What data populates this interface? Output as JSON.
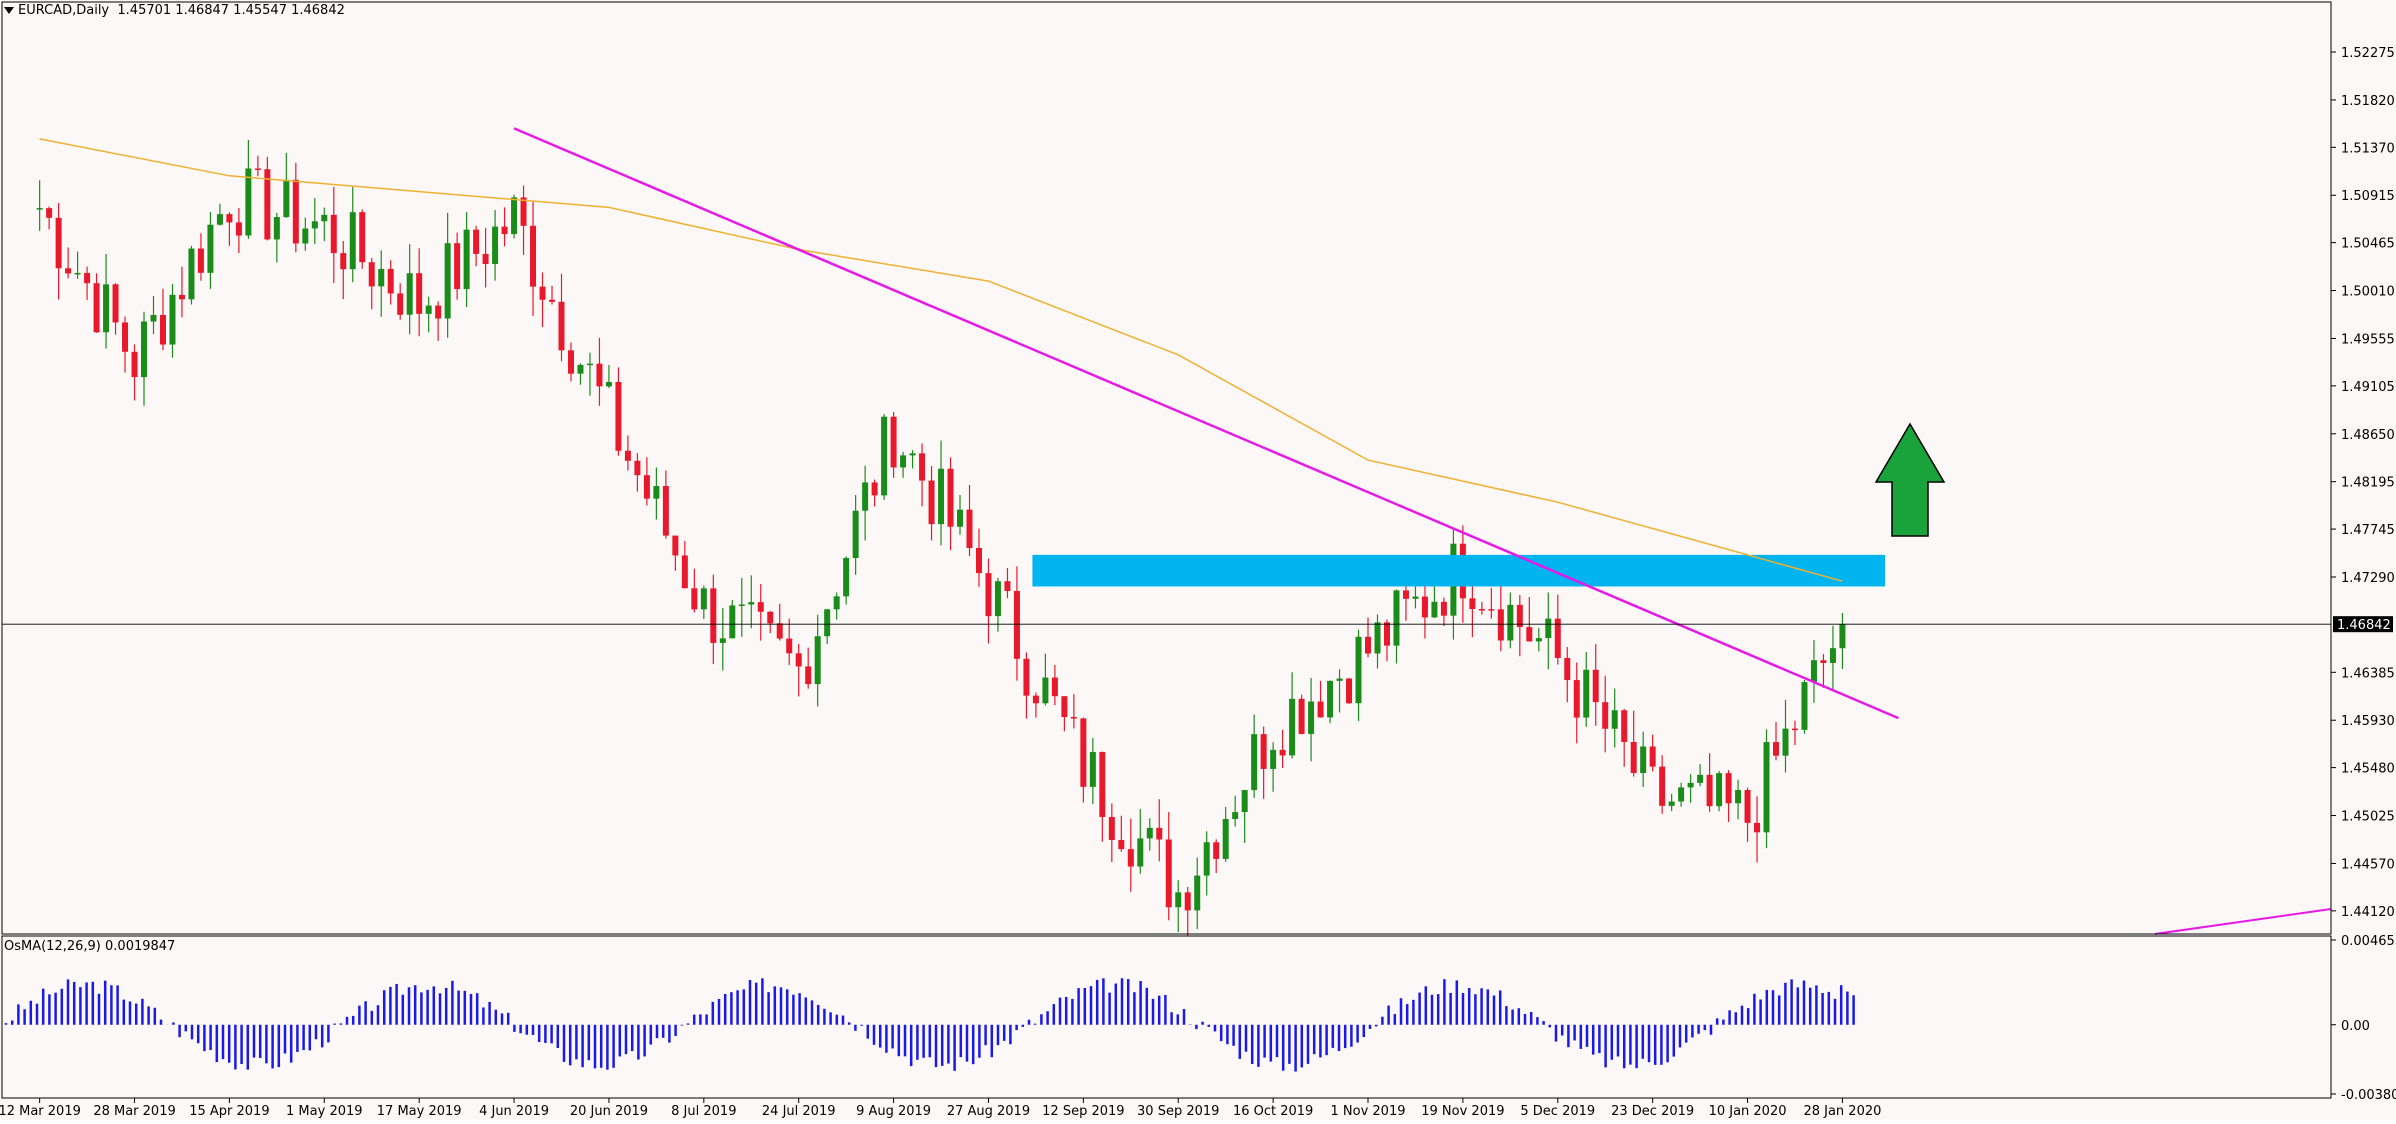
{
  "header": {
    "symbol_timeframe": "EURCAD,Daily",
    "open": "1.45701",
    "high": "1.46847",
    "low": "1.45547",
    "close": "1.46842"
  },
  "indicator": {
    "label": "OsMA(12,26,9)",
    "value": "0.0019847"
  },
  "colors": {
    "background": "#fdf8f8",
    "bull": "#1a8c1a",
    "bear": "#e8192c",
    "trendline": "#e619e6",
    "ma": "#f0b030",
    "zone": "#00b4f0",
    "arrow": "#1aa33a",
    "osma": "#1a1ae6"
  },
  "icons": {
    "arrow": "arrow-up-icon",
    "menu": "triangle-down-icon"
  },
  "chart_data": [
    {
      "type": "candlestick",
      "title": "EURCAD,Daily",
      "ylim": [
        1.439,
        1.5275
      ],
      "y_ticks": [
        "1.52275",
        "1.51820",
        "1.51370",
        "1.50915",
        "1.50465",
        "1.50010",
        "1.49555",
        "1.49105",
        "1.48650",
        "1.48195",
        "1.47745",
        "1.47290",
        "1.46842",
        "1.46385",
        "1.45930",
        "1.45480",
        "1.45025",
        "1.44570",
        "1.44120"
      ],
      "current_price": "1.46842",
      "x_labels": [
        "12 Mar 2019",
        "28 Mar 2019",
        "15 Apr 2019",
        "1 May 2019",
        "17 May 2019",
        "4 Jun 2019",
        "20 Jun 2019",
        "8 Jul 2019",
        "24 Jul 2019",
        "9 Aug 2019",
        "27 Aug 2019",
        "12 Sep 2019",
        "30 Sep 2019",
        "16 Oct 2019",
        "1 Nov 2019",
        "19 Nov 2019",
        "5 Dec 2019",
        "23 Dec 2019",
        "10 Jan 2020",
        "28 Jan 2020"
      ],
      "key_closes": [
        {
          "date": "12 Mar 2019",
          "close": 1.508
        },
        {
          "date": "28 Mar 2019",
          "close": 1.4935
        },
        {
          "date": "15 Apr 2019",
          "close": 1.509
        },
        {
          "date": "1 May 2019",
          "close": 1.506
        },
        {
          "date": "17 May 2019",
          "close": 1.499
        },
        {
          "date": "4 Jun 2019",
          "close": 1.507
        },
        {
          "date": "20 Jun 2019",
          "close": 1.488
        },
        {
          "date": "8 Jul 2019",
          "close": 1.47
        },
        {
          "date": "24 Jul 2019",
          "close": 1.464
        },
        {
          "date": "9 Aug 2019",
          "close": 1.487
        },
        {
          "date": "27 Aug 2019",
          "close": 1.472
        },
        {
          "date": "12 Sep 2019",
          "close": 1.455
        },
        {
          "date": "30 Sep 2019",
          "close": 1.443
        },
        {
          "date": "16 Oct 2019",
          "close": 1.459
        },
        {
          "date": "1 Nov 2019",
          "close": 1.466
        },
        {
          "date": "19 Nov 2019",
          "close": 1.474
        },
        {
          "date": "5 Dec 2019",
          "close": 1.465
        },
        {
          "date": "23 Dec 2019",
          "close": 1.452
        },
        {
          "date": "10 Jan 2020",
          "close": 1.45
        },
        {
          "date": "28 Jan 2020",
          "close": 1.4684
        }
      ],
      "moving_average_path": [
        {
          "date": "12 Mar 2019",
          "value": 1.5145
        },
        {
          "date": "15 Apr 2019",
          "value": 1.511
        },
        {
          "date": "17 May 2019",
          "value": 1.5095
        },
        {
          "date": "20 Jun 2019",
          "value": 1.508
        },
        {
          "date": "24 Jul 2019",
          "value": 1.504
        },
        {
          "date": "27 Aug 2019",
          "value": 1.501
        },
        {
          "date": "30 Sep 2019",
          "value": 1.494
        },
        {
          "date": "1 Nov 2019",
          "value": 1.484
        },
        {
          "date": "5 Dec 2019",
          "value": 1.48
        },
        {
          "date": "28 Jan 2020",
          "value": 1.4725
        }
      ],
      "trendline": [
        {
          "date": "4 Jun 2019",
          "value": 1.5155
        },
        {
          "date": "28 Jan 2020",
          "value": 1.4605
        }
      ],
      "resistance_zone": [
        1.472,
        1.475
      ],
      "annotation": "arrow-up",
      "grid": false
    },
    {
      "type": "bar",
      "title": "OsMA(12,26,9) 0.0019847",
      "y_ticks": [
        "0.0046536",
        "0.00",
        "-0.0038023"
      ],
      "ylim": [
        -0.0038023,
        0.0046536
      ]
    }
  ]
}
